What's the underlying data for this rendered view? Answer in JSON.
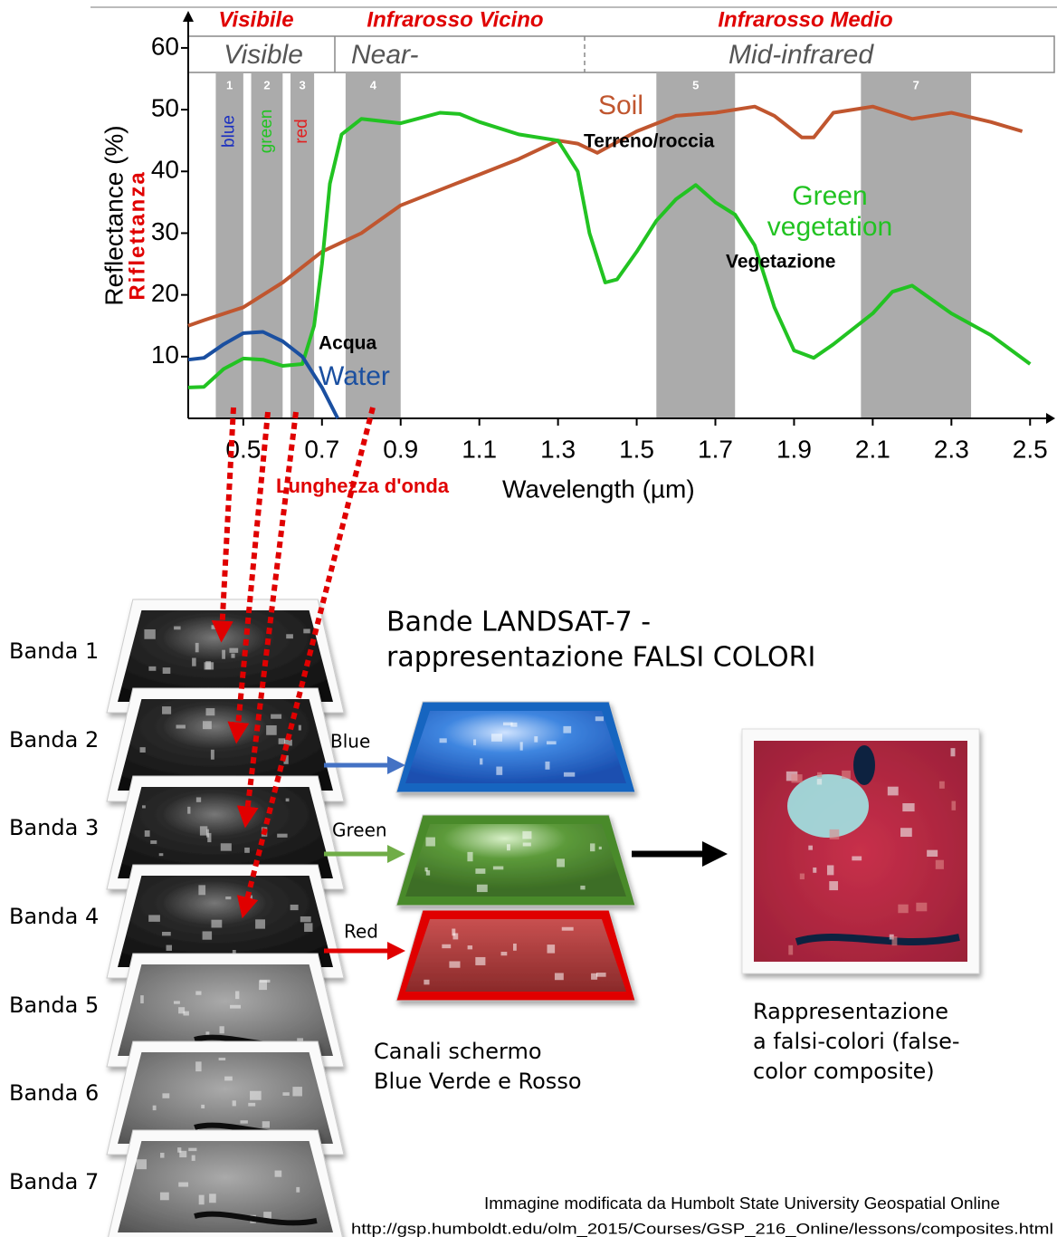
{
  "chart_data": {
    "type": "line",
    "region_labels": [
      {
        "italian": "Visibile",
        "english": "Visible"
      },
      {
        "italian": "Infrarosso Vicino",
        "english": "Near-"
      },
      {
        "italian": "Infrarosso Medio",
        "english": "Mid-infrared"
      }
    ],
    "ylabel": "Reflectance (%)",
    "ylabel_it": "Riflettanza",
    "xlabel": "Wavelength (µm)",
    "xlabel_it": "Lunghezza d'onda",
    "xlim": [
      0.36,
      2.55
    ],
    "ylim": [
      0,
      66
    ],
    "xticks": [
      0.5,
      0.7,
      0.9,
      1.1,
      1.3,
      1.5,
      1.7,
      1.9,
      2.1,
      2.3,
      2.5
    ],
    "yticks": [
      10,
      20,
      30,
      40,
      50,
      60
    ],
    "band_color": "#ababab",
    "bands": [
      {
        "label": "1",
        "name": "blue",
        "color": "#1a2fc0",
        "range": [
          0.43,
          0.5
        ]
      },
      {
        "label": "2",
        "name": "green",
        "color": "#22c322",
        "range": [
          0.52,
          0.6
        ]
      },
      {
        "label": "3",
        "name": "red",
        "color": "#e02020",
        "range": [
          0.62,
          0.68
        ]
      },
      {
        "label": "4",
        "range": [
          0.76,
          0.9
        ]
      },
      {
        "label": "5",
        "range": [
          1.55,
          1.75
        ]
      },
      {
        "label": "7",
        "range": [
          2.07,
          2.35
        ]
      }
    ],
    "series": [
      {
        "name": "Soil",
        "name_it": "Terreno/roccia",
        "color": "#c0562f",
        "x": [
          0.36,
          0.4,
          0.5,
          0.6,
          0.7,
          0.8,
          0.9,
          1.0,
          1.1,
          1.2,
          1.3,
          1.35,
          1.4,
          1.5,
          1.6,
          1.7,
          1.8,
          1.85,
          1.92,
          1.95,
          2.0,
          2.1,
          2.15,
          2.2,
          2.3,
          2.4,
          2.48
        ],
        "values": [
          15,
          15.9,
          18,
          22,
          27,
          30,
          34.5,
          37,
          39.5,
          42,
          45,
          44.5,
          43,
          46.5,
          49,
          49.5,
          50.5,
          49,
          45.5,
          45.5,
          49.5,
          50.5,
          49.5,
          48.5,
          49.5,
          48,
          46.5
        ]
      },
      {
        "name": "Green vegetation",
        "name_it": "Vegetazione",
        "color": "#22c322",
        "x": [
          0.36,
          0.4,
          0.45,
          0.5,
          0.55,
          0.6,
          0.65,
          0.68,
          0.7,
          0.72,
          0.75,
          0.8,
          0.9,
          1.0,
          1.05,
          1.1,
          1.2,
          1.3,
          1.35,
          1.38,
          1.42,
          1.45,
          1.5,
          1.55,
          1.6,
          1.65,
          1.7,
          1.75,
          1.8,
          1.85,
          1.9,
          1.95,
          2.0,
          2.1,
          2.15,
          2.2,
          2.3,
          2.4,
          2.5
        ],
        "values": [
          5,
          5.1,
          8,
          9.7,
          9.5,
          8.5,
          8.8,
          15,
          25,
          38,
          46,
          48.5,
          47.8,
          49.5,
          49.3,
          48,
          46,
          45,
          40,
          30,
          22,
          22.5,
          27,
          32,
          35.5,
          37.8,
          35,
          33,
          28,
          18,
          11,
          9.8,
          12,
          17,
          20.5,
          21.5,
          17,
          13.5,
          8.8
        ]
      },
      {
        "name": "Water",
        "name_it": "Acqua",
        "color": "#1a4fa0",
        "x": [
          0.36,
          0.4,
          0.45,
          0.5,
          0.55,
          0.6,
          0.65,
          0.7,
          0.74
        ],
        "values": [
          9.5,
          9.8,
          12,
          13.8,
          14,
          12.5,
          10,
          5,
          0
        ]
      }
    ]
  },
  "diagram": {
    "bands": [
      "Banda 1",
      "Banda 2",
      "Banda 3",
      "Banda 4",
      "Banda 5",
      "Banda 6",
      "Banda 7"
    ],
    "title": [
      "Bande LANDSAT-7 -",
      "rappresentazione FALSI COLORI"
    ],
    "channels": [
      {
        "label": "Blue",
        "color": "#4472c4"
      },
      {
        "label": "Green",
        "color": "#70ad47"
      },
      {
        "label": "Red",
        "color": "#e00000"
      }
    ],
    "channels_caption": [
      "Canali schermo",
      "Blue Verde e Rosso"
    ],
    "composite_caption": [
      "Rappresentazione",
      "a falsi-colori (false-",
      "color composite)"
    ],
    "credit": [
      "Immagine modificata da  Humbolt State University Geospatial Online",
      "http://gsp.humboldt.edu/olm_2015/Courses/GSP_216_Online/lessons/composites.html"
    ]
  }
}
